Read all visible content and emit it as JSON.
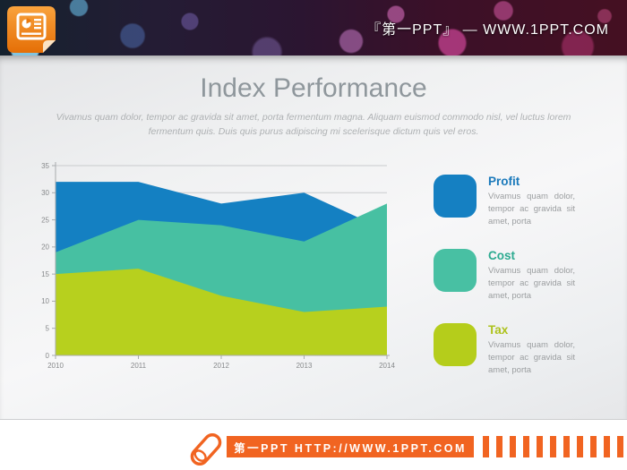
{
  "header": {
    "brand_text": "『第一PPT』 — WWW.1PPT.COM"
  },
  "slide": {
    "title": "Index Performance",
    "subtitle": "Vivamus quam dolor, tempor ac gravida sit amet, porta fermentum magna. Aliquam euismod commodo nisl, vel luctus lorem fermentum quis. Duis quis purus adipiscing mi scelerisque dictum quis vel eros.",
    "legend": [
      {
        "label": "Profit",
        "color": "#1580c2",
        "label_color": "#1a79bb",
        "description": "Vivamus quam dolor, tempor ac gravida sit amet, porta"
      },
      {
        "label": "Cost",
        "color": "#48c0a3",
        "label_color": "#2caa90",
        "description": "Vivamus quam dolor, tempor ac gravida sit amet, porta"
      },
      {
        "label": "Tax",
        "color": "#b5cd1b",
        "label_color": "#adc21d",
        "description": "Vivamus quam dolor, tempor ac gravida sit amet, porta"
      }
    ]
  },
  "chart_data": {
    "type": "area",
    "overlapping": true,
    "categories": [
      "2010",
      "2011",
      "2012",
      "2013",
      "2014"
    ],
    "series": [
      {
        "name": "Profit",
        "color": "#1480c2",
        "values": [
          32,
          32,
          28,
          30,
          23
        ]
      },
      {
        "name": "Cost",
        "color": "#47c0a2",
        "values": [
          19,
          25,
          24,
          21,
          28
        ]
      },
      {
        "name": "Tax",
        "color": "#b7d01e",
        "values": [
          15,
          16,
          11,
          8,
          9
        ]
      }
    ],
    "ylim": [
      0,
      35
    ],
    "ytick_step": 5,
    "grid": true,
    "legend_position": "right",
    "axis_color": "#a8abad",
    "grid_color": "#c9cbcd",
    "tick_label_color": "#87898b"
  },
  "footer": {
    "site_text": "第一PPT HTTP://WWW.1PPT.COM",
    "accent_color": "#f16421"
  }
}
